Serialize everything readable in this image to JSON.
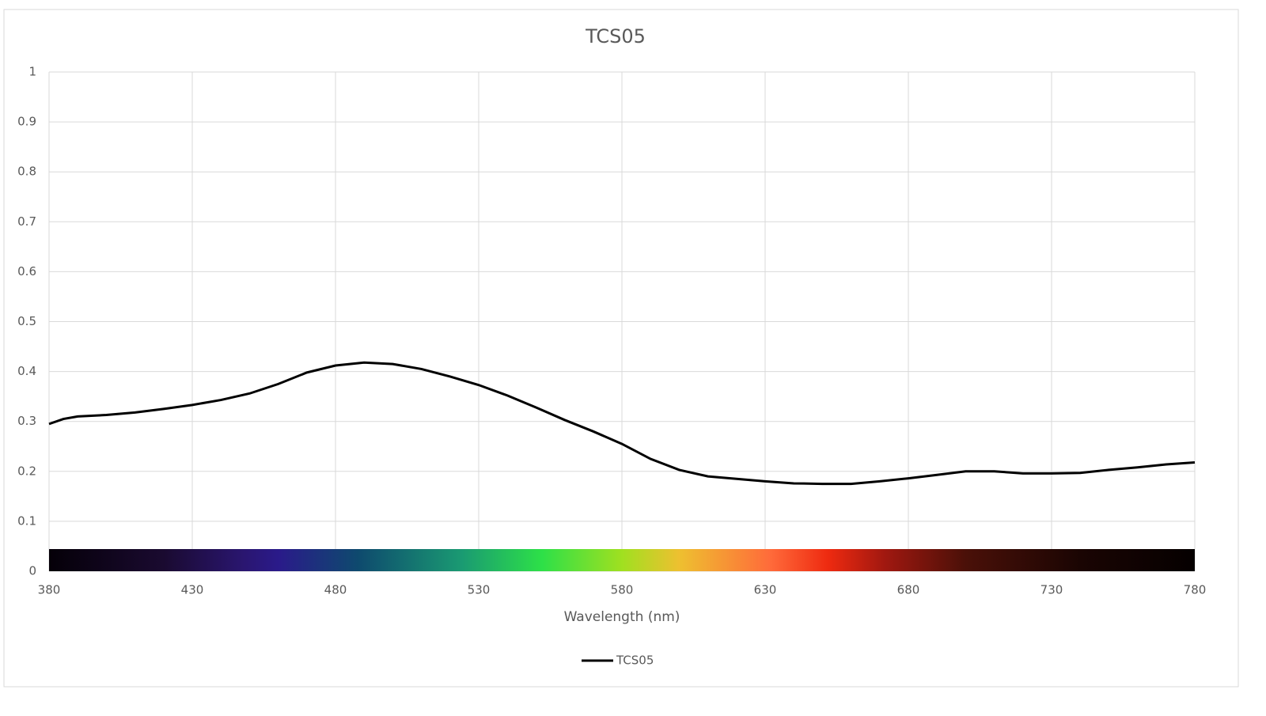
{
  "chart_data": {
    "type": "line",
    "title": "TCS05",
    "x_label": "Wavelength (nm)",
    "x": [
      380,
      385,
      390,
      400,
      410,
      420,
      430,
      440,
      450,
      460,
      470,
      480,
      490,
      500,
      510,
      520,
      530,
      540,
      550,
      560,
      570,
      580,
      590,
      600,
      610,
      620,
      630,
      640,
      650,
      660,
      670,
      680,
      690,
      700,
      710,
      720,
      730,
      740,
      750,
      760,
      770,
      780
    ],
    "series": [
      {
        "name": "TCS05",
        "color": "#000000",
        "values": [
          0.295,
          0.305,
          0.31,
          0.313,
          0.318,
          0.325,
          0.333,
          0.343,
          0.356,
          0.375,
          0.398,
          0.412,
          0.418,
          0.415,
          0.405,
          0.39,
          0.373,
          0.352,
          0.328,
          0.303,
          0.28,
          0.255,
          0.225,
          0.203,
          0.19,
          0.185,
          0.18,
          0.176,
          0.175,
          0.175,
          0.18,
          0.186,
          0.193,
          0.2,
          0.2,
          0.196,
          0.196,
          0.197,
          0.203,
          0.208,
          0.214,
          0.218
        ]
      }
    ],
    "xlim": [
      380,
      780
    ],
    "xticks": [
      380,
      430,
      480,
      530,
      580,
      630,
      680,
      730,
      780
    ],
    "ylim": [
      0,
      1
    ],
    "yticks": [
      0,
      0.1,
      0.2,
      0.3,
      0.4,
      0.5,
      0.6,
      0.7,
      0.8,
      0.9,
      1
    ],
    "grid": true,
    "legend": "bottom"
  }
}
